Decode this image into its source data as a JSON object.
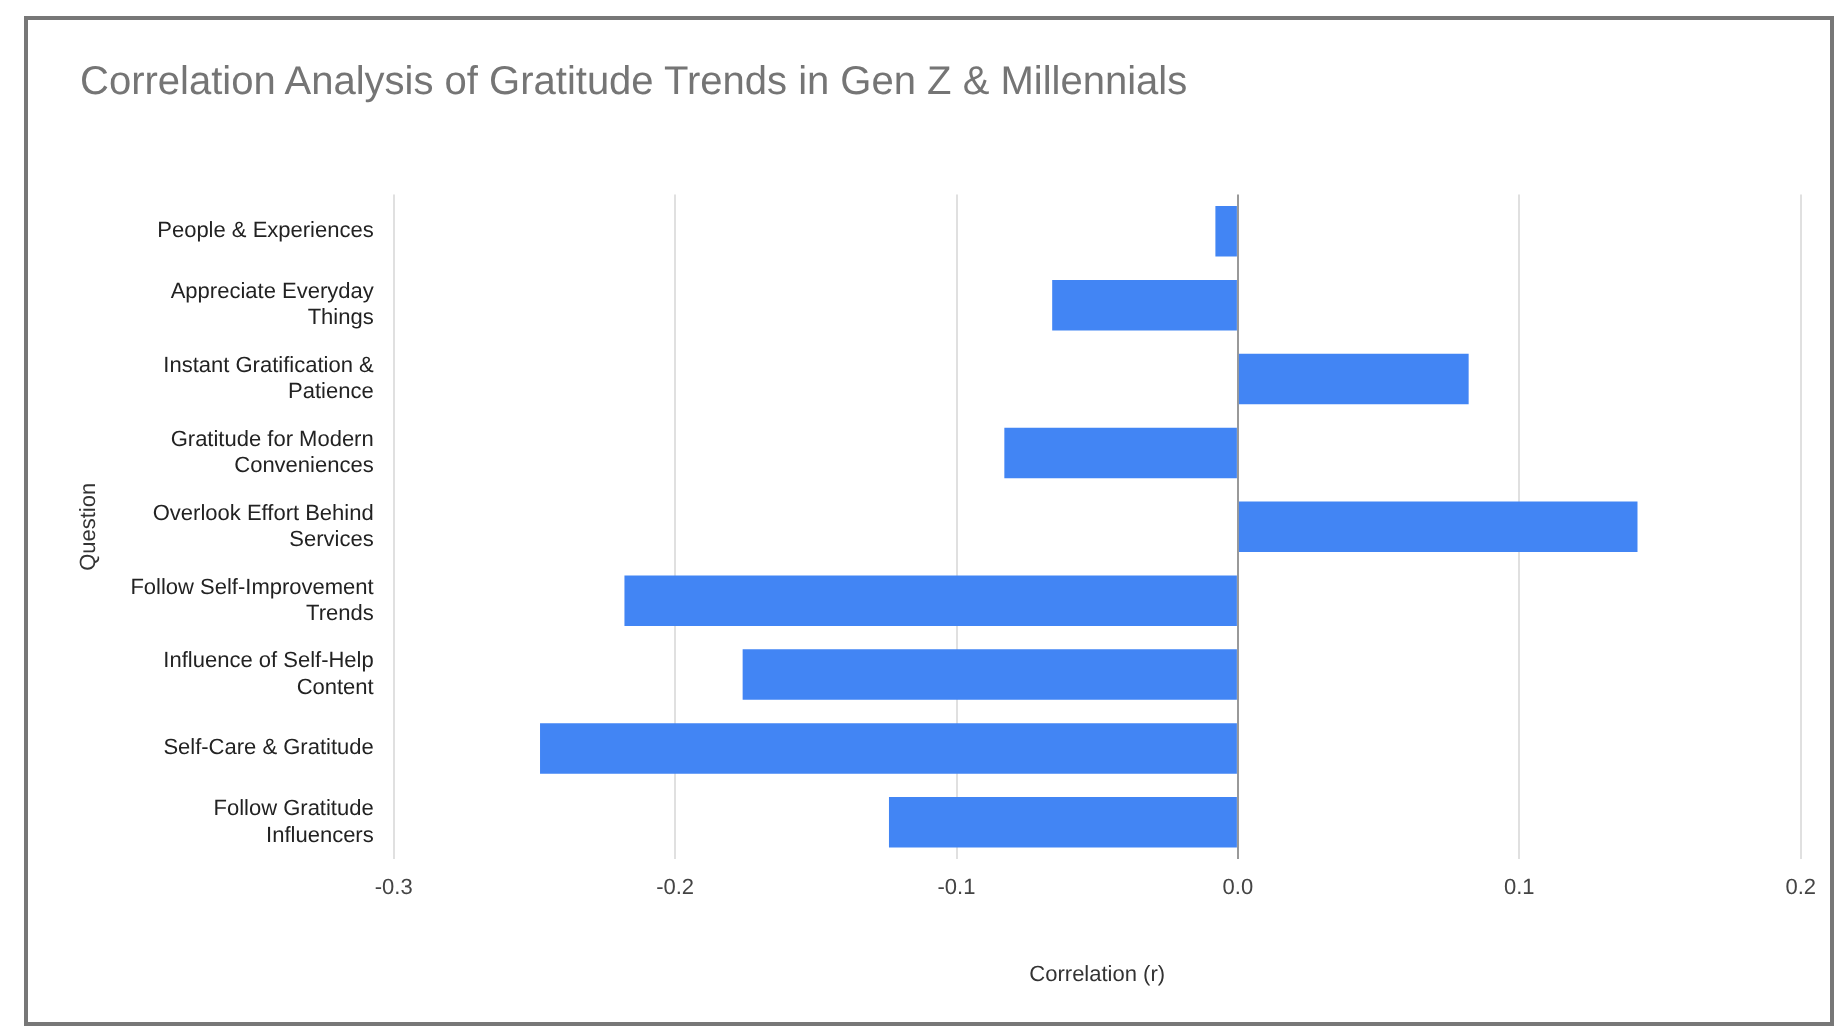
{
  "chart_data": {
    "type": "bar",
    "orientation": "horizontal",
    "title": "Correlation Analysis of Gratitude Trends in Gen Z & Millennials",
    "xlabel": "Correlation (r)",
    "ylabel": "Question",
    "categories": [
      "People & Experiences",
      "Appreciate Everyday Things",
      "Instant Gratification & Patience",
      "Gratitude for Modern Conveniences",
      "Overlook Effort Behind Services",
      "Follow Self-Improvement Trends",
      "Influence of Self-Help Content",
      "Self-Care & Gratitude",
      "Follow Gratitude Influencers"
    ],
    "values": [
      -0.008,
      -0.066,
      0.082,
      -0.083,
      0.142,
      -0.218,
      -0.176,
      -0.248,
      -0.124
    ],
    "color": "#4285f4",
    "xlim": [
      -0.3,
      0.2
    ],
    "xticks": [
      {
        "value": -0.3,
        "label": "-0.3"
      },
      {
        "value": -0.2,
        "label": "-0.2"
      },
      {
        "value": -0.1,
        "label": "-0.1"
      },
      {
        "value": 0,
        "label": "0.0"
      },
      {
        "value": 0.1,
        "label": "0.1"
      },
      {
        "value": 0.2,
        "label": "0.2"
      }
    ],
    "grid": "x",
    "legend": false
  }
}
